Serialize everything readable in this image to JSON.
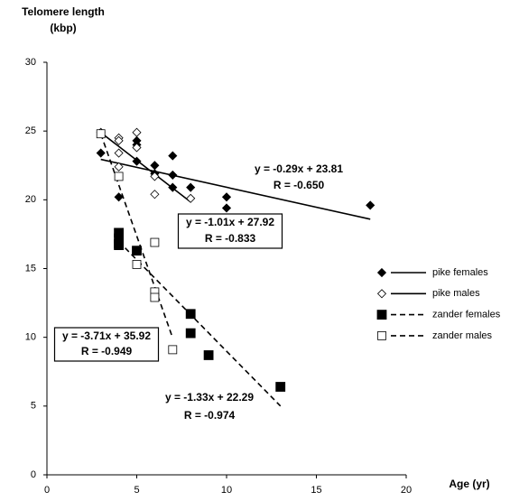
{
  "chart_data": {
    "type": "scatter",
    "ylabel": [
      "Telomere length",
      "(kbp)"
    ],
    "xlabel": "Age (yr)",
    "xlim": [
      0,
      20
    ],
    "xticks": [
      0,
      5,
      10,
      15,
      20
    ],
    "ylim": [
      0,
      30
    ],
    "yticks": [
      0,
      5,
      10,
      15,
      20,
      25,
      30
    ],
    "grid": false,
    "legend": "right",
    "series": [
      {
        "name": "pike females",
        "color": "#000000",
        "marker": "diamond",
        "filled": true,
        "dash": false,
        "x": [
          3,
          4,
          5,
          5,
          5,
          6,
          6,
          7,
          7,
          7,
          8,
          10,
          10,
          18
        ],
        "y": [
          23.4,
          20.2,
          24.3,
          24.0,
          22.8,
          22.5,
          21.9,
          23.2,
          21.8,
          20.9,
          20.9,
          20.2,
          19.4,
          19.6
        ],
        "trend": {
          "x": [
            3,
            18
          ],
          "y": [
            22.94,
            18.59
          ]
        },
        "equation": "y = -0.29x + 23.81",
        "r": "R = -0.650",
        "boxed": false
      },
      {
        "name": "pike males",
        "color": "#000000",
        "marker": "diamond",
        "filled": false,
        "dash": false,
        "x": [
          3,
          4,
          4,
          4,
          4,
          5,
          5,
          6,
          6,
          8
        ],
        "y": [
          24.9,
          24.5,
          24.3,
          23.4,
          22.4,
          24.9,
          23.8,
          21.7,
          20.4,
          20.1
        ],
        "trend": {
          "x": [
            3,
            8
          ],
          "y": [
            24.89,
            19.84
          ]
        },
        "equation": "y = -1.01x + 27.92",
        "r": "R = -0.833",
        "boxed": true
      },
      {
        "name": "zander females",
        "color": "#000000",
        "marker": "square",
        "filled": true,
        "dash": true,
        "x": [
          4,
          4,
          4,
          4,
          5,
          8,
          8,
          9,
          13
        ],
        "y": [
          17.6,
          17.2,
          16.8,
          16.7,
          16.3,
          11.7,
          10.3,
          8.7,
          6.4
        ],
        "trend": {
          "x": [
            4,
            13
          ],
          "y": [
            16.97,
            5.0
          ]
        },
        "equation": "y = -1.33x + 22.29",
        "r": "R = -0.974",
        "boxed": false
      },
      {
        "name": "zander males",
        "color": "#000000",
        "marker": "square",
        "filled": false,
        "dash": true,
        "x": [
          3,
          4,
          5,
          6,
          6,
          6,
          7
        ],
        "y": [
          24.8,
          21.7,
          15.3,
          16.9,
          13.3,
          12.9,
          9.1
        ],
        "trend": {
          "x": [
            3,
            7
          ],
          "y": [
            24.79,
            9.95
          ]
        },
        "equation": "y = -3.71x + 35.92",
        "r": "R = -0.949",
        "boxed": true
      }
    ]
  }
}
